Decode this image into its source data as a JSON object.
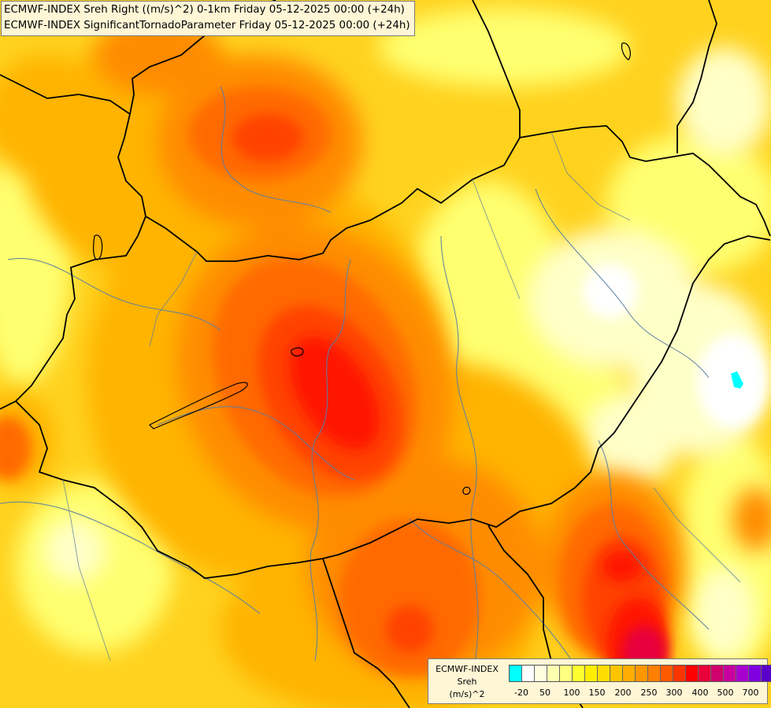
{
  "title_lines": [
    "ECMWF-INDEX Sreh Right ((m/s)^2) 0-1km Friday 05-12-2025 00:00 (+24h)",
    "ECMWF-INDEX SignificantTornadoParameter Friday 05-12-2025 00:00 (+24h)"
  ],
  "legend": {
    "line1": "ECMWF-INDEX",
    "line2": "Sreh",
    "line3": "(m/s)^2",
    "colors": [
      "#00ffff",
      "#ffffff",
      "#ffffe0",
      "#ffffb0",
      "#ffff80",
      "#ffff30",
      "#ffee00",
      "#ffdd00",
      "#ffc400",
      "#ffad00",
      "#ff9600",
      "#ff7f00",
      "#ff5a00",
      "#ff3500",
      "#ff0000",
      "#e8003a",
      "#d0006c",
      "#c800a0",
      "#a800d0",
      "#8000e0",
      "#5a00c8",
      "#2a0090",
      "#000078"
    ],
    "tick_labels": [
      "-20",
      "50",
      "100",
      "150",
      "200",
      "250",
      "300",
      "400",
      "500",
      "700"
    ]
  },
  "map_palette": {
    "base": "#ffd21e",
    "light_yellow": "#ffff70",
    "pale": "#ffffc8",
    "white": "#ffffff",
    "amber": "#ffb400",
    "orange": "#ff8c00",
    "dark_orange": "#ff6a00",
    "red_orange": "#ff4200",
    "red": "#ff1600",
    "crimson": "#e6003c",
    "cyan": "#00ffff",
    "border": "#000000",
    "river": "#5b7ea0"
  }
}
